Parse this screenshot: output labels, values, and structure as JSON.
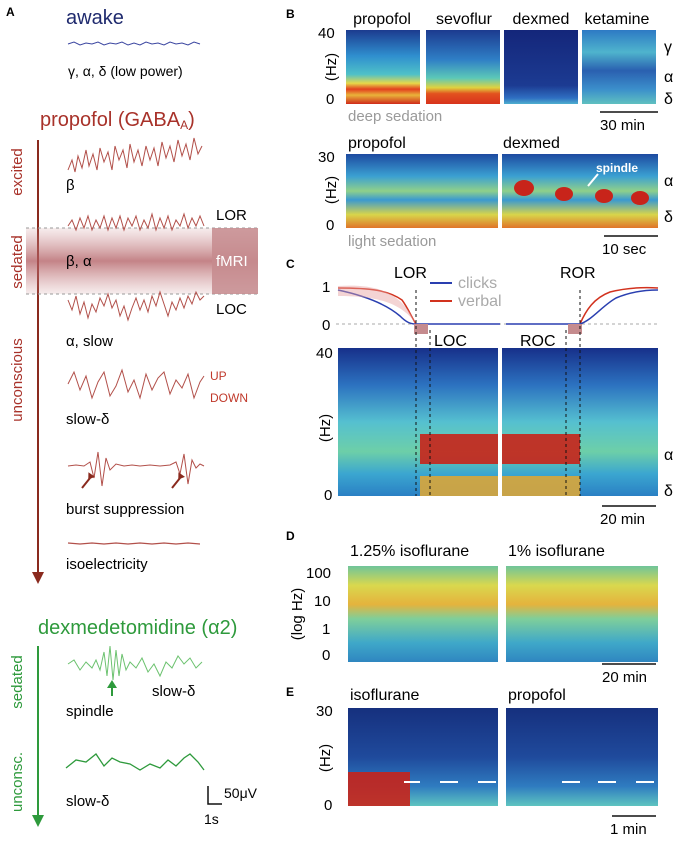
{
  "panels": {
    "A": {
      "letter": "A",
      "awake": {
        "title": "awake",
        "caption": "γ, α, δ (low power)",
        "color": "#1f2a6e"
      },
      "propofol": {
        "title": "propofol (GABAA)",
        "color": "#a8322a",
        "states": [
          "excited",
          "sedated",
          "unconscious"
        ],
        "trace_labels": [
          "β",
          "β, α",
          "α, slow",
          "slow-δ",
          "burst suppression",
          "isoelectricity"
        ],
        "markers": {
          "lor": "LOR",
          "loc": "LOC",
          "fmri": "fMRI",
          "up": "UP",
          "down": "DOWN"
        }
      },
      "dexmed": {
        "title": "dexmedetomidine (α2)",
        "color": "#2e9a3c",
        "states": [
          "sedated",
          "unconsc."
        ],
        "trace_labels": [
          "spindle",
          "slow-δ",
          "slow-δ"
        ]
      },
      "scale_bar": {
        "amplitude": "50μV",
        "time": "1s"
      }
    },
    "B": {
      "letter": "B",
      "top_titles": [
        "propofol",
        "sevoflur",
        "dexmed",
        "ketamine"
      ],
      "top_ylabel": "(Hz)",
      "top_yticks": [
        "40",
        "0"
      ],
      "top_bands": [
        "γ",
        "α",
        "δ"
      ],
      "top_caption": "deep sedation",
      "top_scale": "30 min",
      "bottom_titles": [
        "propofol",
        "dexmed"
      ],
      "bottom_ylabel": "(Hz)",
      "bottom_yticks": [
        "30",
        "0"
      ],
      "bottom_bands": [
        "α",
        "δ"
      ],
      "bottom_caption": "light sedation",
      "bottom_scale": "10 sec",
      "spindle_label": "spindle"
    },
    "C": {
      "letter": "C",
      "events": [
        "LOR",
        "ROR",
        "LOC",
        "ROC"
      ],
      "legend": [
        "clicks",
        "verbal"
      ],
      "legend_colors": [
        "#2a3fb0",
        "#d2321e"
      ],
      "prob_yticks": [
        "1",
        "0"
      ],
      "spec_ylabel": "(Hz)",
      "spec_yticks": [
        "40",
        "0"
      ],
      "bands": [
        "α",
        "δ"
      ],
      "scale": "20 min"
    },
    "D": {
      "letter": "D",
      "titles": [
        "1.25% isoflurane",
        "1% isoflurane"
      ],
      "ylabel": "(log Hz)",
      "yticks": [
        "100",
        "10",
        "1",
        "0"
      ],
      "scale": "20 min"
    },
    "E": {
      "letter": "E",
      "titles": [
        "isoflurane",
        "propofol"
      ],
      "ylabel": "(Hz)",
      "yticks": [
        "30",
        "0"
      ],
      "scale": "1 min"
    }
  }
}
